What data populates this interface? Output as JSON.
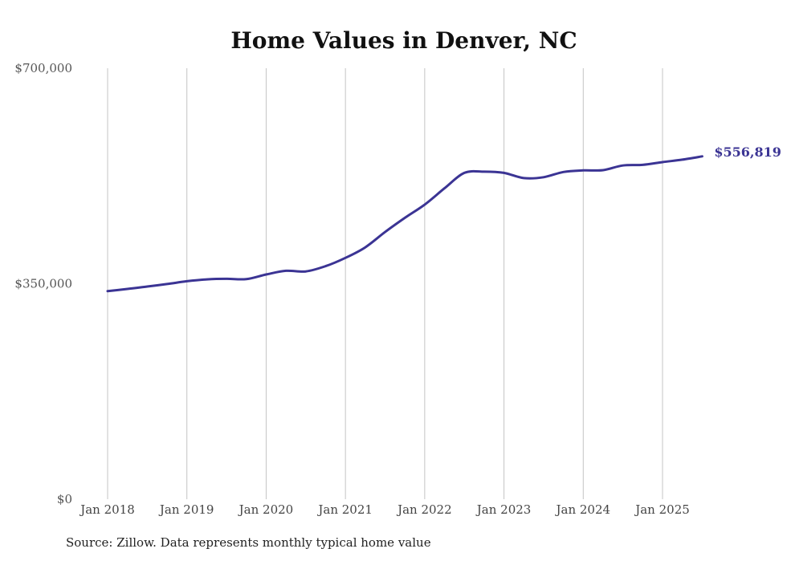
{
  "chart_data": {
    "type": "line",
    "title": "Home Values in Denver, NC",
    "xlabel": "",
    "ylabel": "",
    "ylim": [
      0,
      700000
    ],
    "y_ticks": [
      {
        "value": 0,
        "label": "$0"
      },
      {
        "value": 350000,
        "label": "$350,000"
      },
      {
        "value": 700000,
        "label": "$700,000"
      }
    ],
    "x_ticks": [
      {
        "value": 2018.0,
        "label": "Jan 2018"
      },
      {
        "value": 2019.0,
        "label": "Jan 2019"
      },
      {
        "value": 2020.0,
        "label": "Jan 2020"
      },
      {
        "value": 2021.0,
        "label": "Jan 2021"
      },
      {
        "value": 2022.0,
        "label": "Jan 2022"
      },
      {
        "value": 2023.0,
        "label": "Jan 2023"
      },
      {
        "value": 2024.0,
        "label": "Jan 2024"
      },
      {
        "value": 2025.0,
        "label": "Jan 2025"
      }
    ],
    "grid": {
      "vertical": true,
      "horizontal": false
    },
    "series": [
      {
        "name": "",
        "color": "#3b3494",
        "points": [
          [
            2018.0,
            338000
          ],
          [
            2018.25,
            341500
          ],
          [
            2018.5,
            345500
          ],
          [
            2018.75,
            349500
          ],
          [
            2019.0,
            354000
          ],
          [
            2019.25,
            357000
          ],
          [
            2019.5,
            358000
          ],
          [
            2019.75,
            357500
          ],
          [
            2020.0,
            365000
          ],
          [
            2020.25,
            371000
          ],
          [
            2020.5,
            370000
          ],
          [
            2020.75,
            378500
          ],
          [
            2021.0,
            392000
          ],
          [
            2021.25,
            409000
          ],
          [
            2021.5,
            434000
          ],
          [
            2021.75,
            457000
          ],
          [
            2022.0,
            478500
          ],
          [
            2022.25,
            505000
          ],
          [
            2022.5,
            530000
          ],
          [
            2022.75,
            532000
          ],
          [
            2023.0,
            530000
          ],
          [
            2023.25,
            521500
          ],
          [
            2023.5,
            523000
          ],
          [
            2023.75,
            531500
          ],
          [
            2024.0,
            534000
          ],
          [
            2024.25,
            534500
          ],
          [
            2024.5,
            542000
          ],
          [
            2024.75,
            543000
          ],
          [
            2025.0,
            547500
          ],
          [
            2025.25,
            551500
          ],
          [
            2025.5,
            556819
          ]
        ]
      }
    ],
    "end_label": "$556,819"
  },
  "source": "Source: Zillow. Data represents monthly typical home value"
}
